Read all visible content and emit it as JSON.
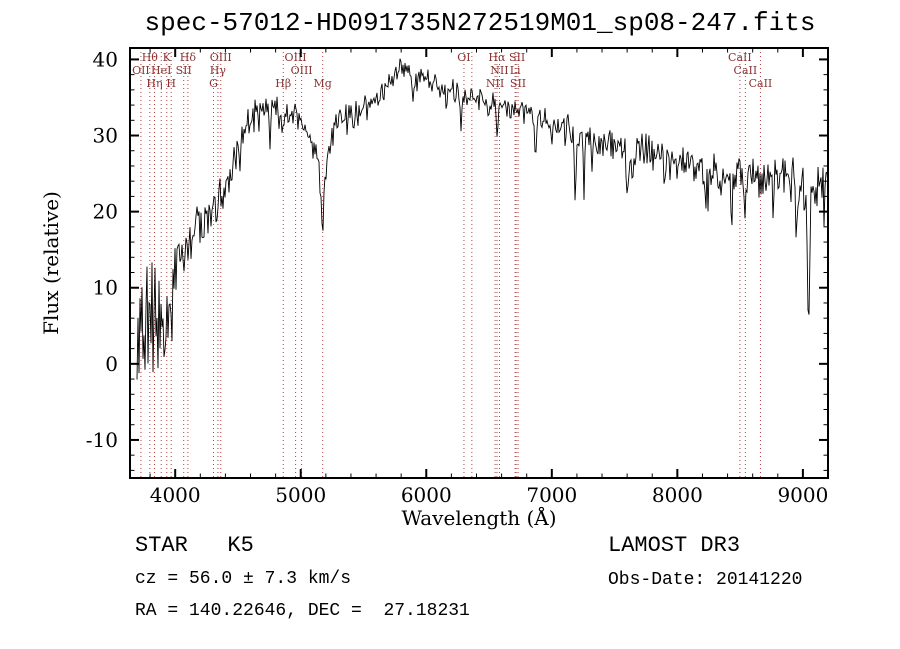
{
  "footer": {
    "object_class": "STAR   K5",
    "cz": "cz = 56.0 ± 7.3 km/s",
    "ra_dec": "RA = 140.22646, DEC =  27.18231",
    "survey": "LAMOST DR3",
    "obs_date": "Obs-Date: 20141220"
  },
  "chart_data": {
    "type": "line",
    "title": "spec-57012-HD091735N272519M01_sp08-247.fits",
    "xlabel": "Wavelength (Å)",
    "ylabel": "Flux (relative)",
    "xlim": [
      3640,
      9200
    ],
    "ylim": [
      -15,
      41.5
    ],
    "xticks": [
      4000,
      5000,
      6000,
      7000,
      8000,
      9000
    ],
    "yticks": [
      -10,
      0,
      10,
      20,
      30,
      40
    ],
    "grid": false,
    "legend": null,
    "spectrum_color": "#000000",
    "marker_color": "#aa4444",
    "label_color": "#8b3333",
    "data_start": 3690,
    "continuum": [
      [
        3690,
        1
      ],
      [
        3720,
        4
      ],
      [
        3750,
        2
      ],
      [
        3790,
        7
      ],
      [
        3830,
        4
      ],
      [
        3870,
        7
      ],
      [
        3910,
        6
      ],
      [
        3950,
        8
      ],
      [
        3990,
        12
      ],
      [
        4030,
        15
      ],
      [
        4070,
        14
      ],
      [
        4110,
        16
      ],
      [
        4150,
        18
      ],
      [
        4200,
        19.5
      ],
      [
        4250,
        19
      ],
      [
        4300,
        19.5
      ],
      [
        4350,
        21
      ],
      [
        4400,
        23.5
      ],
      [
        4450,
        26
      ],
      [
        4500,
        28
      ],
      [
        4550,
        30
      ],
      [
        4600,
        32
      ],
      [
        4650,
        33.5
      ],
      [
        4700,
        34.5
      ],
      [
        4750,
        34
      ],
      [
        4800,
        33.5
      ],
      [
        4860,
        32.5
      ],
      [
        4900,
        33.5
      ],
      [
        4950,
        33
      ],
      [
        5000,
        32
      ],
      [
        5050,
        30.5
      ],
      [
        5100,
        28.5
      ],
      [
        5150,
        26.5
      ],
      [
        5200,
        26
      ],
      [
        5250,
        30
      ],
      [
        5300,
        31.5
      ],
      [
        5350,
        32
      ],
      [
        5400,
        32.5
      ],
      [
        5500,
        33.5
      ],
      [
        5600,
        35
      ],
      [
        5700,
        37
      ],
      [
        5800,
        39
      ],
      [
        5850,
        39.5
      ],
      [
        5900,
        38.5
      ],
      [
        6000,
        37.5
      ],
      [
        6100,
        36.5
      ],
      [
        6200,
        36
      ],
      [
        6300,
        35.5
      ],
      [
        6400,
        35
      ],
      [
        6500,
        34.5
      ],
      [
        6600,
        34
      ],
      [
        6700,
        33.5
      ],
      [
        6800,
        33
      ],
      [
        6900,
        32.2
      ],
      [
        7000,
        31.6
      ],
      [
        7100,
        31
      ],
      [
        7200,
        30.5
      ],
      [
        7300,
        30
      ],
      [
        7400,
        29.4
      ],
      [
        7500,
        28.6
      ],
      [
        7600,
        27.8
      ],
      [
        7700,
        28
      ],
      [
        7800,
        27.6
      ],
      [
        7900,
        27.2
      ],
      [
        8000,
        26.6
      ],
      [
        8100,
        26.2
      ],
      [
        8200,
        25.8
      ],
      [
        8300,
        25.2
      ],
      [
        8400,
        25
      ],
      [
        8500,
        24.6
      ],
      [
        8600,
        24.2
      ],
      [
        8700,
        24.6
      ],
      [
        8800,
        25.4
      ],
      [
        8900,
        24.6
      ],
      [
        9000,
        23.6
      ],
      [
        9100,
        23.2
      ]
    ],
    "noise_amplitude": [
      [
        3640,
        7
      ],
      [
        3800,
        5.5
      ],
      [
        3900,
        4.5
      ],
      [
        4000,
        3.2
      ],
      [
        4200,
        2.4
      ],
      [
        4400,
        2.0
      ],
      [
        4700,
        1.7
      ],
      [
        5000,
        1.5
      ],
      [
        5300,
        1.3
      ],
      [
        5700,
        1.1
      ],
      [
        6000,
        1.0
      ],
      [
        6500,
        1.0
      ],
      [
        6900,
        1.2
      ],
      [
        7300,
        1.5
      ],
      [
        7700,
        1.7
      ],
      [
        8100,
        1.9
      ],
      [
        8500,
        2.1
      ],
      [
        9000,
        2.3
      ],
      [
        9200,
        2.3
      ]
    ],
    "absorption_features": [
      [
        4226,
        4,
        8
      ],
      [
        4383,
        3,
        6
      ],
      [
        4520,
        4,
        5
      ],
      [
        4668,
        4,
        5
      ],
      [
        4754,
        5,
        5
      ],
      [
        4861,
        3.5,
        6
      ],
      [
        5172,
        8,
        12
      ],
      [
        5892,
        4,
        8
      ],
      [
        6162,
        2.5,
        6
      ],
      [
        6277,
        5,
        5
      ],
      [
        6495,
        2.5,
        6
      ],
      [
        6563,
        4,
        7
      ],
      [
        6867,
        4.5,
        9
      ],
      [
        7000,
        2.5,
        6
      ],
      [
        7186,
        11,
        5
      ],
      [
        7256,
        8,
        5
      ],
      [
        7320,
        5,
        5
      ],
      [
        7605,
        5,
        10
      ],
      [
        7640,
        3,
        7
      ],
      [
        7900,
        3,
        7
      ],
      [
        8227,
        6,
        6
      ],
      [
        8430,
        5,
        6
      ],
      [
        8542,
        3.5,
        6
      ],
      [
        8662,
        3,
        6
      ],
      [
        8760,
        5,
        6
      ],
      [
        8950,
        6,
        7
      ],
      [
        9045,
        17,
        9
      ]
    ],
    "marker_wavelengths": [
      3727,
      3798,
      3835,
      3889,
      3933,
      3968,
      4068,
      4101,
      4305,
      4340,
      4363,
      4861,
      4959,
      5007,
      5175,
      6300,
      6363,
      6548,
      6563,
      6583,
      6708,
      6716,
      6731,
      8498,
      8542,
      8662
    ],
    "line_labels": [
      {
        "text": "Hθ",
        "wavelength": 3798,
        "row": 0
      },
      {
        "text": "K",
        "wavelength": 3933,
        "row": 0
      },
      {
        "text": "Hδ",
        "wavelength": 4101,
        "row": 0
      },
      {
        "text": "OIII",
        "wavelength": 4363,
        "row": 0
      },
      {
        "text": "OIII",
        "wavelength": 4959,
        "row": 0
      },
      {
        "text": "OI",
        "wavelength": 6300,
        "row": 0
      },
      {
        "text": "Hα",
        "wavelength": 6563,
        "row": 0
      },
      {
        "text": "SII",
        "wavelength": 6724,
        "row": 0
      },
      {
        "text": "CaII",
        "wavelength": 8498,
        "row": 0
      },
      {
        "text": "OII",
        "wavelength": 3727,
        "row": 1
      },
      {
        "text": "HeI",
        "wavelength": 3889,
        "row": 1
      },
      {
        "text": "SII",
        "wavelength": 4068,
        "row": 1
      },
      {
        "text": "Hγ",
        "wavelength": 4340,
        "row": 1
      },
      {
        "text": "OIII",
        "wavelength": 5007,
        "row": 1
      },
      {
        "text": "NII",
        "wavelength": 6583,
        "row": 1
      },
      {
        "text": "Li",
        "wavelength": 6708,
        "row": 1
      },
      {
        "text": "CaII",
        "wavelength": 8542,
        "row": 1
      },
      {
        "text": "Hη",
        "wavelength": 3835,
        "row": 2
      },
      {
        "text": "H",
        "wavelength": 3968,
        "row": 2
      },
      {
        "text": "G",
        "wavelength": 4305,
        "row": 2
      },
      {
        "text": "Hβ",
        "wavelength": 4861,
        "row": 2
      },
      {
        "text": "Mg",
        "wavelength": 5175,
        "row": 2
      },
      {
        "text": "NII",
        "wavelength": 6548,
        "row": 2
      },
      {
        "text": "SII",
        "wavelength": 6731,
        "row": 2
      },
      {
        "text": "CaII",
        "wavelength": 8662,
        "row": 2
      }
    ]
  }
}
